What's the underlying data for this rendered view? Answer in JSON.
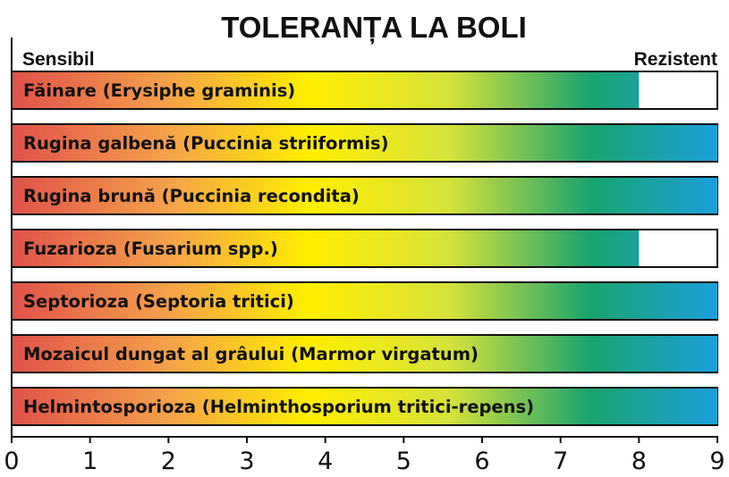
{
  "chart_data": {
    "type": "bar",
    "orientation": "horizontal",
    "title": "TOLERANȚA LA BOLI",
    "scale_start_label": "Sensibil",
    "scale_end_label": "Rezistent",
    "xlim": [
      0,
      9
    ],
    "x_ticks": [
      "0",
      "1",
      "2",
      "3",
      "4",
      "5",
      "6",
      "7",
      "8",
      "9"
    ],
    "categories": [
      "Făinare (Erysiphe graminis)",
      "Rugina galbenă (Puccinia striiformis)",
      "Rugina brună (Puccinia recondita)",
      "Fuzarioza (Fusarium spp.)",
      "Septorioza (Septoria tritici)",
      "Mozaicul dungat al grâului (Marmor virgatum)",
      "Helmintosporioza (Helminthosporium tritici-repens)"
    ],
    "values": [
      8,
      9,
      9,
      8,
      9,
      9,
      9
    ],
    "gradient_colors": [
      "#e0524a",
      "#f5a04a",
      "#ffee00",
      "#d6e23a",
      "#1aa36e",
      "#1aa0dc"
    ],
    "grid": false,
    "legend": "none"
  }
}
